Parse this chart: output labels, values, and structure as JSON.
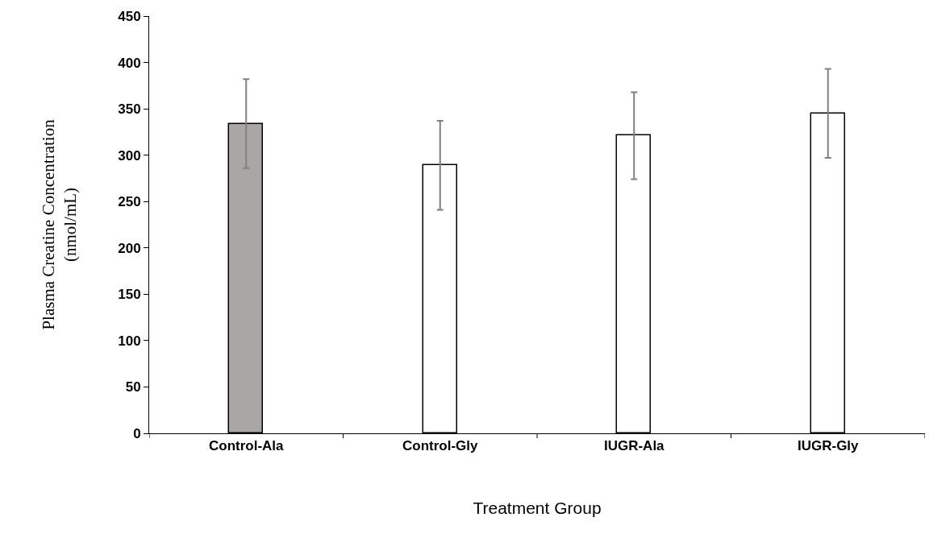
{
  "chart_data": {
    "type": "bar",
    "xlabel": "Treatment Group",
    "ylabel": "Plasma Creatine Concentration\n(nmol/mL)",
    "categories": [
      "Control-Ala",
      "Control-Gly",
      "IUGR-Ala",
      "IUGR-Gly"
    ],
    "values": [
      334,
      289,
      321,
      345
    ],
    "errors": [
      48,
      48,
      47,
      48
    ],
    "colors": [
      "#aaa6a6",
      "#ffffff",
      "#ffffff",
      "#ffffff"
    ],
    "ylim": [
      0,
      450
    ],
    "yticks": [
      0,
      50,
      100,
      150,
      200,
      250,
      300,
      350,
      400,
      450
    ],
    "grid": false
  }
}
